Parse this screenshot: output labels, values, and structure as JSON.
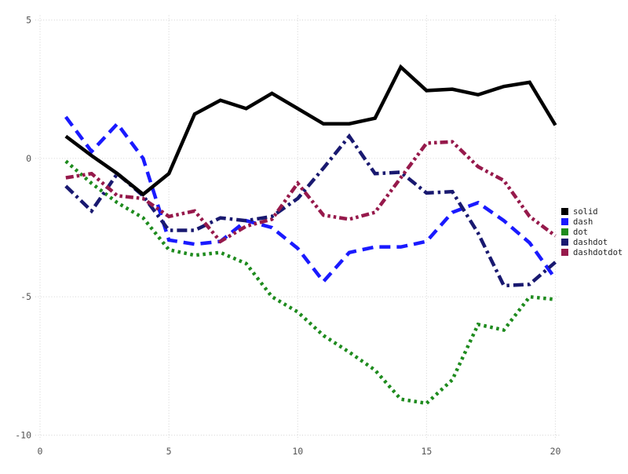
{
  "chart_data": {
    "type": "line",
    "title": "",
    "xlabel": "",
    "ylabel": "",
    "xlim": [
      0,
      20
    ],
    "ylim": [
      -10,
      5
    ],
    "x_ticks": [
      "0",
      "5",
      "10",
      "15",
      "20"
    ],
    "x_tick_values": [
      0,
      5,
      10,
      15,
      20
    ],
    "y_ticks": [
      "5",
      "0",
      "-5",
      "-10"
    ],
    "y_tick_values": [
      5,
      0,
      -5,
      -10
    ],
    "grid": "dotted",
    "grid_color": "#d9d9d9",
    "tick_label_color": "#545454",
    "legend_text_color": "#262626",
    "legend_position": "right-outside",
    "background_color": "#ffffff",
    "x": [
      1,
      2,
      3,
      4,
      5,
      6,
      7,
      8,
      9,
      10,
      11,
      12,
      13,
      14,
      15,
      16,
      17,
      18,
      19,
      20
    ],
    "series": [
      {
        "name": "solid",
        "color": "#000000",
        "dash_style": "solid",
        "values": [
          0.8,
          0.1,
          -0.55,
          -1.3,
          -0.55,
          1.6,
          2.1,
          1.8,
          2.35,
          1.8,
          1.25,
          1.25,
          1.45,
          3.3,
          2.45,
          2.5,
          2.3,
          2.6,
          2.75,
          1.2
        ]
      },
      {
        "name": "dash",
        "color": "#1a1aff",
        "dash_style": "dash",
        "values": [
          1.5,
          0.25,
          1.25,
          0.0,
          -2.95,
          -3.1,
          -3.0,
          -2.25,
          -2.5,
          -3.25,
          -4.45,
          -3.4,
          -3.2,
          -3.2,
          -3.0,
          -1.95,
          -1.6,
          -2.25,
          -3.05,
          -4.35
        ]
      },
      {
        "name": "dot",
        "color": "#1e8b1e",
        "dash_style": "dot",
        "values": [
          -0.1,
          -0.9,
          -1.6,
          -2.15,
          -3.3,
          -3.5,
          -3.4,
          -3.8,
          -5.0,
          -5.55,
          -6.4,
          -7.0,
          -7.65,
          -8.7,
          -8.85,
          -8.0,
          -6.0,
          -6.2,
          -5.0,
          -5.1
        ]
      },
      {
        "name": "dashdot",
        "color": "#191970",
        "dash_style": "dashdot",
        "values": [
          -1.0,
          -1.9,
          -0.55,
          -1.35,
          -2.6,
          -2.6,
          -2.15,
          -2.25,
          -2.1,
          -1.45,
          -0.35,
          0.8,
          -0.55,
          -0.5,
          -1.25,
          -1.2,
          -2.7,
          -4.6,
          -4.55,
          -3.75
        ]
      },
      {
        "name": "dashdotdot",
        "color": "#96194b",
        "dash_style": "dashdotdot",
        "values": [
          -0.7,
          -0.55,
          -1.35,
          -1.45,
          -2.1,
          -1.9,
          -3.0,
          -2.45,
          -2.2,
          -0.9,
          -2.05,
          -2.2,
          -1.95,
          -0.7,
          0.55,
          0.6,
          -0.3,
          -0.8,
          -2.1,
          -2.8
        ]
      }
    ],
    "legend": [
      "solid",
      "dash",
      "dot",
      "dashdot",
      "dashdotdot"
    ]
  }
}
